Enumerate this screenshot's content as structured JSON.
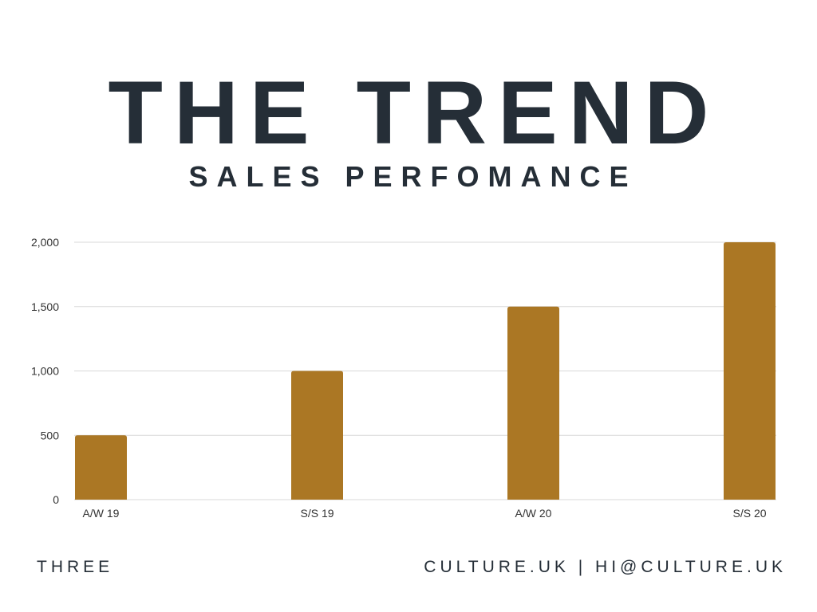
{
  "title": "THE TREND",
  "subtitle": "SALES PERFOMANCE",
  "footer": {
    "left": "THREE",
    "right": "CULTURE.UK | HI@CULTURE.UK"
  },
  "chart_data": {
    "type": "bar",
    "title": "",
    "xlabel": "",
    "ylabel": "",
    "categories": [
      "A/W 19",
      "S/S 19",
      "A/W 20",
      "S/S 20"
    ],
    "values": [
      500,
      1000,
      1500,
      2000
    ],
    "ylim": [
      0,
      2000
    ],
    "yticks": [
      0,
      500,
      1000,
      1500,
      2000
    ],
    "ytick_labels": [
      "0",
      "500",
      "1,000",
      "1,500",
      "2,000"
    ],
    "grid": true,
    "bar_color": "#ab7724",
    "grid_color": "#d9d9d9"
  }
}
